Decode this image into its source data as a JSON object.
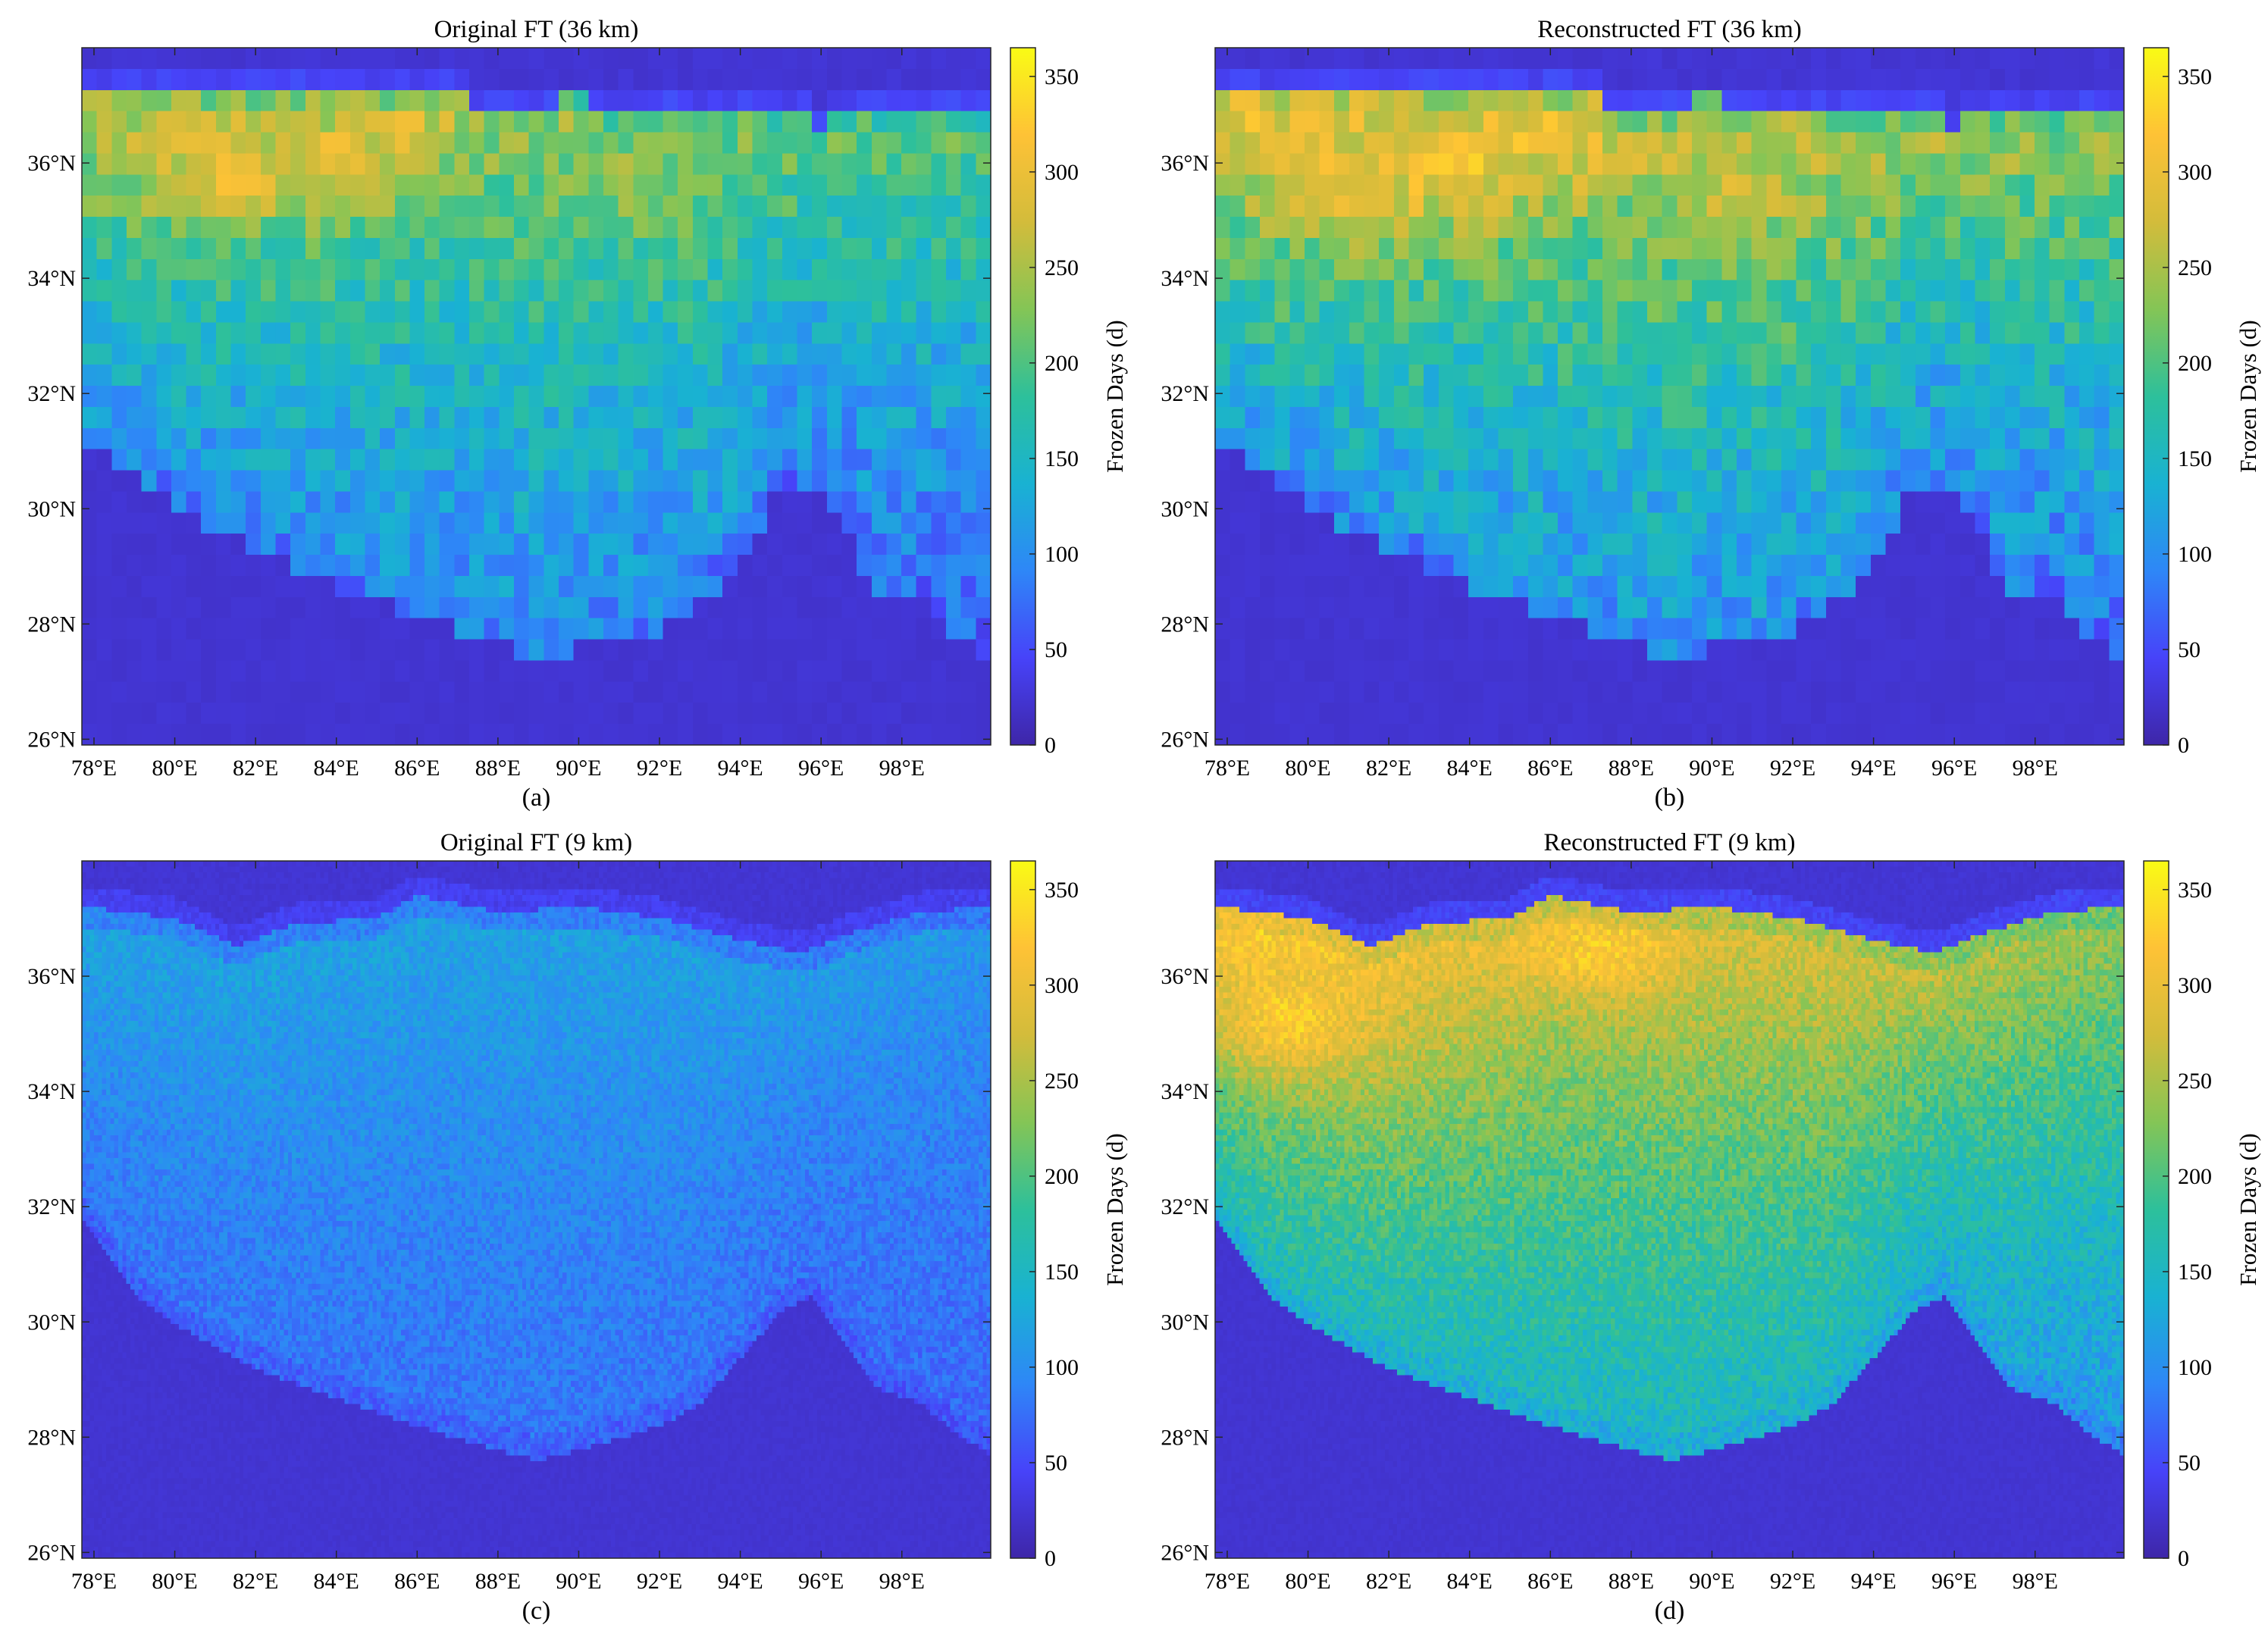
{
  "colormap": [
    "#3e26a8",
    "#4743f9",
    "#2e87f7",
    "#19b2d2",
    "#2dc09b",
    "#84c556",
    "#d3bc3b",
    "#fec236",
    "#f9fb15"
  ],
  "chart_data": [
    {
      "type": "heatmap",
      "panel": "(a)",
      "title": "Original FT (36 km)",
      "xlabel": "",
      "ylabel": "",
      "colorbar_label": "Frozen Days (d)",
      "clim": [
        0,
        365
      ],
      "colorbar_ticks": [
        "0",
        "50",
        "100",
        "150",
        "200",
        "250",
        "300",
        "350"
      ],
      "xlim": [
        77.7,
        100.2
      ],
      "ylim": [
        25.9,
        38.0
      ],
      "xticks": [
        "78°E",
        "80°E",
        "82°E",
        "84°E",
        "86°E",
        "88°E",
        "90°E",
        "92°E",
        "94°E",
        "96°E",
        "98°E"
      ],
      "yticks": [
        "26°N",
        "28°N",
        "30°N",
        "32°N",
        "34°N",
        "36°N"
      ],
      "grid_resolution_deg": 0.37,
      "region": {
        "north_edge_lat": [
          [
            77.7,
            37.3
          ],
          [
            80,
            37.1
          ],
          [
            82,
            37.2
          ],
          [
            84,
            37.1
          ],
          [
            86,
            37.3
          ],
          [
            88,
            37.0
          ],
          [
            90,
            37.1
          ],
          [
            92,
            36.8
          ],
          [
            94,
            36.9
          ],
          [
            96,
            36.7
          ],
          [
            98,
            36.9
          ],
          [
            100.2,
            37.0
          ]
        ],
        "south_edge_lat": [
          [
            77.7,
            31.2
          ],
          [
            79,
            30.5
          ],
          [
            80,
            30.0
          ],
          [
            82,
            29.2
          ],
          [
            84,
            28.6
          ],
          [
            86,
            28.1
          ],
          [
            88,
            27.6
          ],
          [
            89,
            27.3
          ],
          [
            90,
            27.5
          ],
          [
            91,
            27.7
          ],
          [
            92,
            27.8
          ],
          [
            93,
            28.2
          ],
          [
            94,
            29.0
          ],
          [
            95,
            30.2
          ],
          [
            95.7,
            30.3
          ],
          [
            96.5,
            29.8
          ],
          [
            97.3,
            28.5
          ],
          [
            98.5,
            28.3
          ],
          [
            99.2,
            27.8
          ],
          [
            100.2,
            27.4
          ]
        ]
      },
      "field_values_days": {
        "background": 20,
        "northern_strip": 45,
        "south_base": 100,
        "north_peak": 235,
        "west_boost": 40,
        "east_drop": 25,
        "noise": 35,
        "hotspots": [
          [
            81,
            35.6,
            70
          ],
          [
            84,
            35.8,
            65
          ],
          [
            86,
            36.5,
            45
          ],
          [
            90.5,
            35.5,
            25
          ]
        ]
      }
    },
    {
      "type": "heatmap",
      "panel": "(b)",
      "title": "Reconstructed FT (36 km)",
      "xlabel": "",
      "ylabel": "",
      "colorbar_label": "Frozen Days (d)",
      "clim": [
        0,
        365
      ],
      "colorbar_ticks": [
        "0",
        "50",
        "100",
        "150",
        "200",
        "250",
        "300",
        "350"
      ],
      "xlim": [
        77.7,
        100.2
      ],
      "ylim": [
        25.9,
        38.0
      ],
      "xticks": [
        "78°E",
        "80°E",
        "82°E",
        "84°E",
        "86°E",
        "88°E",
        "90°E",
        "92°E",
        "94°E",
        "96°E",
        "98°E"
      ],
      "yticks": [
        "26°N",
        "28°N",
        "30°N",
        "32°N",
        "34°N",
        "36°N"
      ],
      "grid_resolution_deg": 0.37,
      "region": {
        "north_edge_lat": [
          [
            77.7,
            37.3
          ],
          [
            80,
            37.1
          ],
          [
            82,
            37.2
          ],
          [
            84,
            37.1
          ],
          [
            86,
            37.3
          ],
          [
            88,
            37.0
          ],
          [
            90,
            37.1
          ],
          [
            92,
            36.8
          ],
          [
            94,
            36.9
          ],
          [
            96,
            36.7
          ],
          [
            98,
            36.9
          ],
          [
            100.2,
            37.0
          ]
        ],
        "south_edge_lat": [
          [
            77.7,
            31.2
          ],
          [
            79,
            30.5
          ],
          [
            80,
            30.0
          ],
          [
            82,
            29.2
          ],
          [
            84,
            28.6
          ],
          [
            86,
            28.1
          ],
          [
            88,
            27.6
          ],
          [
            89,
            27.3
          ],
          [
            90,
            27.5
          ],
          [
            91,
            27.7
          ],
          [
            92,
            27.8
          ],
          [
            93,
            28.2
          ],
          [
            94,
            29.0
          ],
          [
            95,
            30.2
          ],
          [
            95.7,
            30.3
          ],
          [
            96.5,
            29.8
          ],
          [
            97.3,
            28.5
          ],
          [
            98.5,
            28.3
          ],
          [
            99.2,
            27.8
          ],
          [
            100.2,
            27.4
          ]
        ]
      },
      "field_values_days": {
        "background": 20,
        "northern_strip": 45,
        "south_base": 110,
        "north_peak": 265,
        "west_boost": 45,
        "east_drop": 25,
        "noise": 38,
        "hotspots": [
          [
            81,
            35.5,
            60
          ],
          [
            84,
            35.7,
            55
          ],
          [
            86.5,
            36.3,
            45
          ],
          [
            90.5,
            35.5,
            30
          ]
        ]
      }
    },
    {
      "type": "heatmap",
      "panel": "(c)",
      "title": "Original FT (9 km)",
      "xlabel": "",
      "ylabel": "",
      "colorbar_label": "Frozen Days (d)",
      "clim": [
        0,
        365
      ],
      "colorbar_ticks": [
        "0",
        "50",
        "100",
        "150",
        "200",
        "250",
        "300",
        "350"
      ],
      "xlim": [
        77.7,
        100.2
      ],
      "ylim": [
        25.9,
        38.0
      ],
      "xticks": [
        "78°E",
        "80°E",
        "82°E",
        "84°E",
        "86°E",
        "88°E",
        "90°E",
        "92°E",
        "94°E",
        "96°E",
        "98°E"
      ],
      "yticks": [
        "26°N",
        "28°N",
        "30°N",
        "32°N",
        "34°N",
        "36°N"
      ],
      "grid_resolution_deg": 0.1,
      "region": {
        "north_edge_lat": [
          [
            77.7,
            37.2
          ],
          [
            80,
            37.0
          ],
          [
            81.5,
            36.5
          ],
          [
            83,
            36.9
          ],
          [
            85,
            37.0
          ],
          [
            86,
            37.4
          ],
          [
            88,
            37.1
          ],
          [
            90,
            37.2
          ],
          [
            92,
            37.0
          ],
          [
            94,
            36.6
          ],
          [
            95.5,
            36.4
          ],
          [
            97,
            36.8
          ],
          [
            98.5,
            37.1
          ],
          [
            100.2,
            37.2
          ]
        ],
        "south_edge_lat": [
          [
            77.7,
            31.8
          ],
          [
            79,
            30.4
          ],
          [
            80,
            29.9
          ],
          [
            82,
            29.1
          ],
          [
            84,
            28.6
          ],
          [
            86,
            28.1
          ],
          [
            88,
            27.7
          ],
          [
            89,
            27.5
          ],
          [
            90,
            27.7
          ],
          [
            92,
            28.1
          ],
          [
            93,
            28.5
          ],
          [
            94,
            29.3
          ],
          [
            95,
            30.1
          ],
          [
            95.8,
            30.4
          ],
          [
            96.6,
            29.6
          ],
          [
            97.3,
            28.8
          ],
          [
            98.5,
            28.5
          ],
          [
            99.3,
            28.0
          ],
          [
            100.2,
            27.6
          ]
        ]
      },
      "field_values_days": {
        "background": 20,
        "northern_strip": 40,
        "south_base": 80,
        "north_peak": 120,
        "west_boost": 5,
        "east_drop": 10,
        "noise": 18,
        "hotspots": []
      }
    },
    {
      "type": "heatmap",
      "panel": "(d)",
      "title": "Reconstructed FT (9 km)",
      "xlabel": "",
      "ylabel": "",
      "colorbar_label": "Frozen Days (d)",
      "clim": [
        0,
        365
      ],
      "colorbar_ticks": [
        "0",
        "50",
        "100",
        "150",
        "200",
        "250",
        "300",
        "350"
      ],
      "xlim": [
        77.7,
        100.2
      ],
      "ylim": [
        25.9,
        38.0
      ],
      "xticks": [
        "78°E",
        "80°E",
        "82°E",
        "84°E",
        "86°E",
        "88°E",
        "90°E",
        "92°E",
        "94°E",
        "96°E",
        "98°E"
      ],
      "yticks": [
        "26°N",
        "28°N",
        "30°N",
        "32°N",
        "34°N",
        "36°N"
      ],
      "grid_resolution_deg": 0.1,
      "region": {
        "north_edge_lat": [
          [
            77.7,
            37.2
          ],
          [
            80,
            37.0
          ],
          [
            81.5,
            36.5
          ],
          [
            83,
            36.9
          ],
          [
            85,
            37.0
          ],
          [
            86,
            37.4
          ],
          [
            88,
            37.1
          ],
          [
            90,
            37.2
          ],
          [
            92,
            37.0
          ],
          [
            94,
            36.6
          ],
          [
            95.5,
            36.4
          ],
          [
            97,
            36.8
          ],
          [
            98.5,
            37.1
          ],
          [
            100.2,
            37.2
          ]
        ],
        "south_edge_lat": [
          [
            77.7,
            31.8
          ],
          [
            79,
            30.4
          ],
          [
            80,
            29.9
          ],
          [
            82,
            29.1
          ],
          [
            84,
            28.6
          ],
          [
            86,
            28.1
          ],
          [
            88,
            27.7
          ],
          [
            89,
            27.5
          ],
          [
            90,
            27.7
          ],
          [
            92,
            28.1
          ],
          [
            93,
            28.5
          ],
          [
            94,
            29.3
          ],
          [
            95,
            30.1
          ],
          [
            95.8,
            30.4
          ],
          [
            96.6,
            29.6
          ],
          [
            97.3,
            28.8
          ],
          [
            98.5,
            28.5
          ],
          [
            99.3,
            28.0
          ],
          [
            100.2,
            27.6
          ]
        ]
      },
      "field_values_days": {
        "background": 20,
        "northern_strip": 45,
        "south_base": 150,
        "north_peak": 285,
        "west_boost": 55,
        "east_drop": 40,
        "noise": 28,
        "hotspots": [
          [
            79.5,
            35.0,
            55
          ],
          [
            86.5,
            36.4,
            35
          ],
          [
            88,
            36.3,
            30
          ]
        ]
      }
    }
  ]
}
